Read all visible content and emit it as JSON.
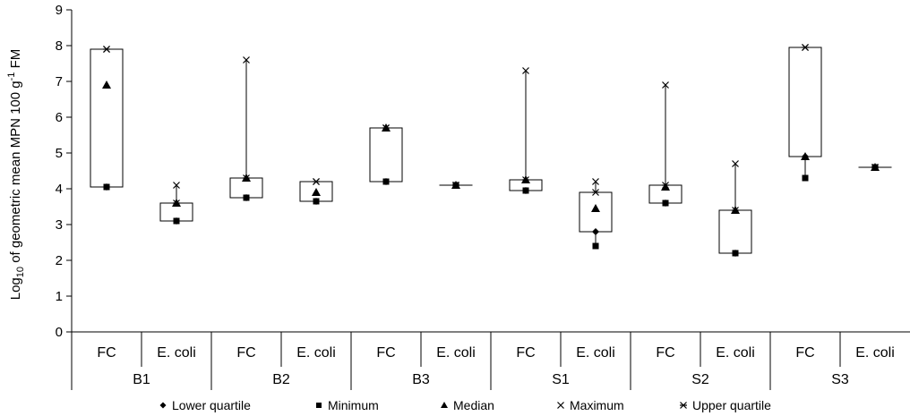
{
  "chart_data": {
    "type": "box",
    "ylabel": "Log10 of geometric mean MPN 100 g-1 FM",
    "ylabel_parts": {
      "pre": "Log",
      "sub": "10",
      "mid": " of geometric mean MPN 100 g",
      "sup": "-1",
      "post": " FM"
    },
    "ylim": [
      0,
      9
    ],
    "yticks": [
      "0",
      "1",
      "2",
      "3",
      "4",
      "5",
      "6",
      "7",
      "8",
      "9"
    ],
    "grid": false,
    "legend_position": "bottom",
    "groups": [
      "B1",
      "B2",
      "B3",
      "S1",
      "S2",
      "S3"
    ],
    "subcategories": [
      "FC",
      "E. coli"
    ],
    "series": [
      {
        "group": "B1",
        "sub": "FC",
        "min": 4.05,
        "lower_quartile": 4.05,
        "median": 6.9,
        "upper_quartile": 7.9,
        "max": 7.9
      },
      {
        "group": "B1",
        "sub": "E. coli",
        "min": 3.1,
        "lower_quartile": 3.1,
        "median": 3.6,
        "upper_quartile": 3.6,
        "max": 4.1
      },
      {
        "group": "B2",
        "sub": "FC",
        "min": 3.75,
        "lower_quartile": 3.75,
        "median": 4.3,
        "upper_quartile": 4.3,
        "max": 7.6
      },
      {
        "group": "B2",
        "sub": "E. coli",
        "min": 3.65,
        "lower_quartile": 3.65,
        "median": 3.9,
        "upper_quartile": 4.2,
        "max": 4.2
      },
      {
        "group": "B3",
        "sub": "FC",
        "min": 4.2,
        "lower_quartile": 4.2,
        "median": 5.7,
        "upper_quartile": 5.7,
        "max": 5.7
      },
      {
        "group": "B3",
        "sub": "E. coli",
        "min": 4.1,
        "lower_quartile": 4.1,
        "median": 4.1,
        "upper_quartile": 4.1,
        "max": 4.1
      },
      {
        "group": "S1",
        "sub": "FC",
        "min": 3.95,
        "lower_quartile": 3.95,
        "median": 4.25,
        "upper_quartile": 4.25,
        "max": 7.3
      },
      {
        "group": "S1",
        "sub": "E. coli",
        "min": 2.4,
        "lower_quartile": 2.8,
        "median": 3.45,
        "upper_quartile": 3.9,
        "max": 4.2
      },
      {
        "group": "S2",
        "sub": "FC",
        "min": 3.6,
        "lower_quartile": 3.6,
        "median": 4.05,
        "upper_quartile": 4.1,
        "max": 6.9
      },
      {
        "group": "S2",
        "sub": "E. coli",
        "min": 2.2,
        "lower_quartile": 2.2,
        "median": 3.4,
        "upper_quartile": 3.4,
        "max": 4.7
      },
      {
        "group": "S3",
        "sub": "FC",
        "min": 4.3,
        "lower_quartile": 4.9,
        "median": 4.9,
        "upper_quartile": 7.95,
        "max": 7.95
      },
      {
        "group": "S3",
        "sub": "E. coli",
        "min": 4.6,
        "lower_quartile": 4.6,
        "median": 4.6,
        "upper_quartile": 4.6,
        "max": 4.6
      }
    ],
    "legend": [
      {
        "key": "lower_quartile",
        "label": "Lower quartile",
        "marker": "diamond"
      },
      {
        "key": "min",
        "label": "Minimum",
        "marker": "square"
      },
      {
        "key": "median",
        "label": "Median",
        "marker": "triangle"
      },
      {
        "key": "max",
        "label": "Maximum",
        "marker": "x"
      },
      {
        "key": "upper_quartile",
        "label": "Upper quartile",
        "marker": "star"
      }
    ],
    "colors": {
      "box_fill": "#ffffff",
      "stroke": "#000000",
      "marker": "#000000"
    }
  }
}
